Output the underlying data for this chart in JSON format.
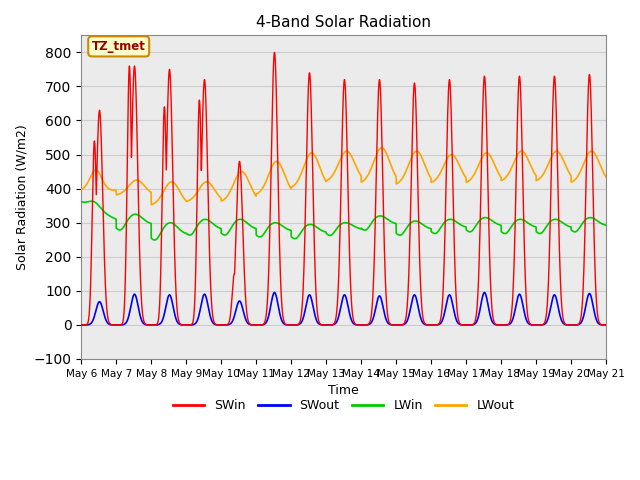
{
  "title": "4-Band Solar Radiation",
  "xlabel": "Time",
  "ylabel": "Solar Radiation (W/m2)",
  "annotation": "TZ_tmet",
  "ylim": [
    -100,
    850
  ],
  "yticks": [
    -100,
    0,
    100,
    200,
    300,
    400,
    500,
    600,
    700,
    800
  ],
  "colors": {
    "SWin": "#FF0000",
    "SWout": "#0000FF",
    "LWin": "#00CC00",
    "LWout": "#FFA500"
  },
  "n_days": 15,
  "start_day": 6,
  "background_color": "#FFFFFF",
  "plot_bg": "#EBEBEB",
  "grid_color": "#CCCCCC",
  "swin_peaks": [
    630,
    760,
    750,
    720,
    480,
    800,
    740,
    720,
    720,
    710,
    720,
    730,
    730,
    730,
    735
  ],
  "swin_peaks2": [
    540,
    760,
    640,
    660,
    150,
    0,
    0,
    0,
    0,
    0,
    0,
    0,
    0,
    0,
    0
  ],
  "swout_peaks": [
    68,
    90,
    88,
    90,
    70,
    95,
    88,
    88,
    85,
    88,
    88,
    95,
    90,
    88,
    92
  ],
  "lwin_base": [
    340,
    295,
    265,
    280,
    280,
    275,
    270,
    280,
    295,
    280,
    285,
    290,
    285,
    285,
    290
  ],
  "lwin_amp": [
    25,
    30,
    35,
    30,
    30,
    25,
    25,
    20,
    25,
    25,
    25,
    25,
    25,
    25,
    25
  ],
  "lwout_base": [
    390,
    380,
    350,
    360,
    360,
    380,
    400,
    420,
    415,
    410,
    415,
    415,
    420,
    420,
    415
  ],
  "lwout_peaks": [
    450,
    425,
    420,
    420,
    450,
    480,
    505,
    510,
    520,
    510,
    500,
    505,
    510,
    510,
    510
  ],
  "samples_per_day": 240
}
